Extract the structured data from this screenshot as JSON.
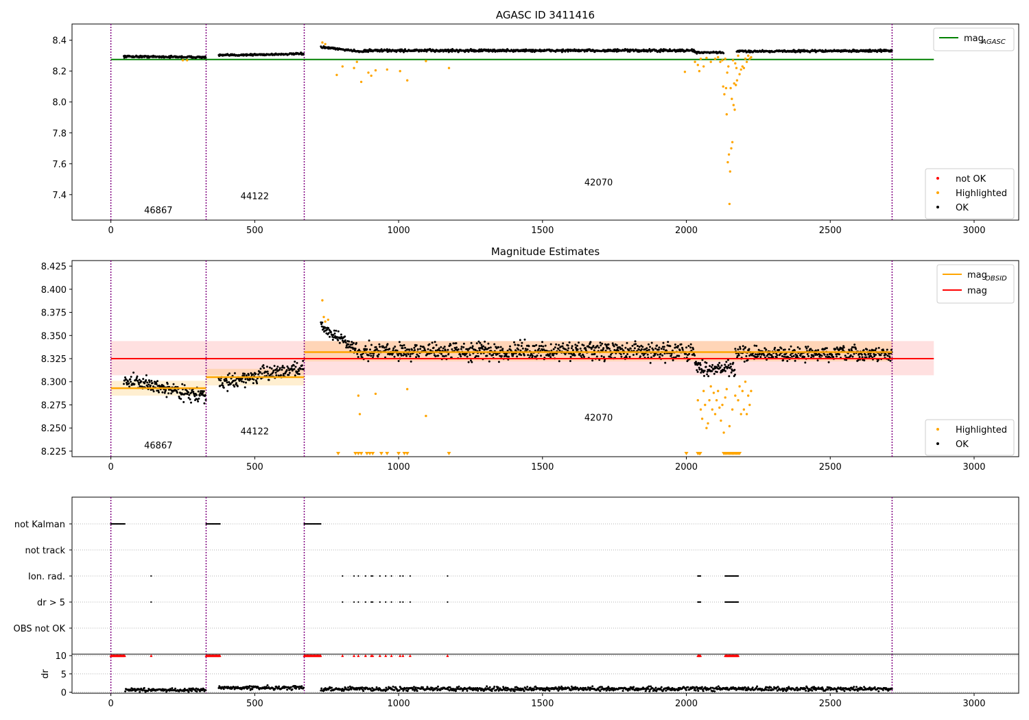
{
  "chart_data": [
    {
      "id": "top",
      "type": "scatter",
      "title": "AGASC ID 3411416",
      "xlim": [
        -135,
        3155
      ],
      "ylim": [
        7.235,
        8.505
      ],
      "xticks": [
        0,
        500,
        1000,
        1500,
        2000,
        2500,
        3000
      ],
      "yticks": [
        7.4,
        7.6,
        7.8,
        8.0,
        8.2,
        8.4
      ],
      "ytick_labels": [
        "7.4",
        "7.6",
        "7.8",
        "8.0",
        "8.2",
        "8.4"
      ],
      "obs_boundaries": [
        0,
        331,
        672,
        2715
      ],
      "obs_labels": [
        {
          "text": "46867",
          "x": 165,
          "y": 7.28
        },
        {
          "text": "44122",
          "x": 500,
          "y": 7.37
        },
        {
          "text": "42070",
          "x": 1695,
          "y": 7.46
        }
      ],
      "hlines": [
        {
          "name": "mag_agasc",
          "y": 8.275,
          "x0": 0,
          "x1": 2860,
          "color": "#008000"
        }
      ],
      "ok_segments": [
        {
          "x0": 45,
          "x1": 330,
          "base": 8.295,
          "slope": -0.005,
          "noise": 0.008
        },
        {
          "x0": 375,
          "x1": 670,
          "base": 8.302,
          "slope": 0.01,
          "noise": 0.008
        },
        {
          "x0": 730,
          "x1": 880,
          "base": 8.355,
          "slope": -0.03,
          "noise": 0.008
        },
        {
          "x0": 880,
          "x1": 2030,
          "base": 8.333,
          "slope": 0.0,
          "noise": 0.011
        },
        {
          "x0": 2030,
          "x1": 2130,
          "base": 8.32,
          "slope": 0.0,
          "noise": 0.007
        },
        {
          "x0": 2175,
          "x1": 2715,
          "base": 8.328,
          "slope": 0.004,
          "noise": 0.009
        }
      ],
      "highlighted_points": [
        [
          250,
          8.27
        ],
        [
          265,
          8.27
        ],
        [
          735,
          8.385
        ],
        [
          745,
          8.375
        ],
        [
          785,
          8.175
        ],
        [
          805,
          8.23
        ],
        [
          845,
          8.22
        ],
        [
          855,
          8.26
        ],
        [
          870,
          8.13
        ],
        [
          895,
          8.19
        ],
        [
          905,
          8.17
        ],
        [
          920,
          8.205
        ],
        [
          960,
          8.21
        ],
        [
          1005,
          8.2
        ],
        [
          1030,
          8.14
        ],
        [
          1095,
          8.265
        ],
        [
          1175,
          8.22
        ],
        [
          1995,
          8.195
        ],
        [
          2030,
          8.26
        ],
        [
          2040,
          8.24
        ],
        [
          2045,
          8.2
        ],
        [
          2050,
          8.28
        ],
        [
          2060,
          8.23
        ],
        [
          2070,
          8.285
        ],
        [
          2085,
          8.26
        ],
        [
          2100,
          8.28
        ],
        [
          2110,
          8.29
        ],
        [
          2118,
          8.26
        ],
        [
          2125,
          8.27
        ],
        [
          2128,
          8.1
        ],
        [
          2132,
          8.05
        ],
        [
          2135,
          8.28
        ],
        [
          2138,
          8.09
        ],
        [
          2140,
          7.92
        ],
        [
          2142,
          8.19
        ],
        [
          2144,
          7.61
        ],
        [
          2146,
          8.23
        ],
        [
          2148,
          7.66
        ],
        [
          2150,
          7.34
        ],
        [
          2152,
          7.55
        ],
        [
          2154,
          8.09
        ],
        [
          2156,
          7.7
        ],
        [
          2158,
          8.02
        ],
        [
          2160,
          7.74
        ],
        [
          2162,
          8.27
        ],
        [
          2164,
          7.98
        ],
        [
          2166,
          8.12
        ],
        [
          2168,
          7.95
        ],
        [
          2170,
          8.25
        ],
        [
          2172,
          8.11
        ],
        [
          2174,
          8.22
        ],
        [
          2176,
          8.14
        ],
        [
          2180,
          8.3
        ],
        [
          2185,
          8.18
        ],
        [
          2190,
          8.21
        ],
        [
          2195,
          8.23
        ],
        [
          2200,
          8.22
        ],
        [
          2205,
          8.28
        ],
        [
          2210,
          8.26
        ],
        [
          2215,
          8.3
        ],
        [
          2220,
          8.28
        ],
        [
          2225,
          8.29
        ]
      ],
      "not_ok_points": [],
      "legend_lines": [
        {
          "label": "mag",
          "sub": "AGASC",
          "color": "#008000"
        }
      ],
      "legend_markers": [
        {
          "label": "not OK",
          "color": "#ff0000"
        },
        {
          "label": "Highlighted",
          "color": "#ffa500"
        },
        {
          "label": "OK",
          "color": "#000000"
        }
      ]
    },
    {
      "id": "mid",
      "type": "scatter",
      "title": "Magnitude Estimates",
      "xlim": [
        -135,
        3155
      ],
      "ylim": [
        8.219,
        8.431
      ],
      "xticks": [
        0,
        500,
        1000,
        1500,
        2000,
        2500,
        3000
      ],
      "yticks": [
        8.225,
        8.25,
        8.275,
        8.3,
        8.325,
        8.35,
        8.375,
        8.4,
        8.425
      ],
      "ytick_labels": [
        "8.225",
        "8.250",
        "8.275",
        "8.300",
        "8.325",
        "8.350",
        "8.375",
        "8.400",
        "8.425"
      ],
      "obs_boundaries": [
        0,
        331,
        672,
        2715
      ],
      "obs_labels": [
        {
          "text": "46867",
          "x": 165,
          "y": 8.228
        },
        {
          "text": "44122",
          "x": 500,
          "y": 8.243
        },
        {
          "text": "42070",
          "x": 1695,
          "y": 8.258
        }
      ],
      "mag_band": {
        "y0": 8.307,
        "y1": 8.344,
        "x0": 0,
        "x1": 2860,
        "color": "#ffcccc"
      },
      "mag_line": {
        "y": 8.325,
        "x0": 0,
        "x1": 2860,
        "color": "#ff0000"
      },
      "obsid_lines": [
        {
          "x0": 0,
          "x1": 331,
          "y": 8.293,
          "lo": 8.285,
          "hi": 8.301
        },
        {
          "x0": 331,
          "x1": 672,
          "y": 8.305,
          "lo": 8.296,
          "hi": 8.314
        },
        {
          "x0": 672,
          "x1": 2715,
          "y": 8.332,
          "lo": 8.322,
          "hi": 8.344
        }
      ],
      "ok_segments": [
        {
          "x0": 45,
          "x1": 330,
          "base": 8.302,
          "slope": -0.018,
          "noise": 0.01
        },
        {
          "x0": 375,
          "x1": 670,
          "base": 8.298,
          "slope": 0.018,
          "noise": 0.01
        },
        {
          "x0": 730,
          "x1": 880,
          "base": 8.36,
          "slope": -0.03,
          "noise": 0.008
        },
        {
          "x0": 880,
          "x1": 2030,
          "base": 8.333,
          "slope": 0.0,
          "noise": 0.012
        },
        {
          "x0": 2030,
          "x1": 2170,
          "base": 8.315,
          "slope": 0.0,
          "noise": 0.01
        },
        {
          "x0": 2170,
          "x1": 2715,
          "base": 8.33,
          "slope": 0.0,
          "noise": 0.01
        }
      ],
      "highlighted_points": [
        [
          735,
          8.388
        ],
        [
          740,
          8.37
        ],
        [
          745,
          8.365
        ],
        [
          755,
          8.367
        ],
        [
          860,
          8.285
        ],
        [
          865,
          8.265
        ],
        [
          920,
          8.287
        ],
        [
          1030,
          8.292
        ],
        [
          1095,
          8.263
        ],
        [
          2040,
          8.28
        ],
        [
          2050,
          8.27
        ],
        [
          2055,
          8.26
        ],
        [
          2060,
          8.29
        ],
        [
          2065,
          8.275
        ],
        [
          2070,
          8.25
        ],
        [
          2075,
          8.255
        ],
        [
          2080,
          8.28
        ],
        [
          2085,
          8.295
        ],
        [
          2090,
          8.27
        ],
        [
          2095,
          8.288
        ],
        [
          2100,
          8.265
        ],
        [
          2105,
          8.28
        ],
        [
          2110,
          8.29
        ],
        [
          2115,
          8.272
        ],
        [
          2120,
          8.258
        ],
        [
          2125,
          8.275
        ],
        [
          2130,
          8.245
        ],
        [
          2135,
          8.283
        ],
        [
          2140,
          8.292
        ],
        [
          2150,
          8.252
        ],
        [
          2160,
          8.27
        ],
        [
          2170,
          8.285
        ],
        [
          2180,
          8.28
        ],
        [
          2185,
          8.295
        ],
        [
          2190,
          8.265
        ],
        [
          2195,
          8.29
        ],
        [
          2200,
          8.27
        ],
        [
          2205,
          8.3
        ],
        [
          2210,
          8.265
        ],
        [
          2215,
          8.285
        ],
        [
          2220,
          8.275
        ],
        [
          2225,
          8.29
        ]
      ],
      "clipped_points": [
        790,
        850,
        860,
        870,
        890,
        900,
        910,
        940,
        960,
        1000,
        1020,
        1030,
        1175,
        2000,
        2040,
        2045,
        2048,
        2130,
        2135,
        2140,
        2145,
        2150,
        2155,
        2160,
        2165,
        2170,
        2175,
        2180,
        2185
      ],
      "legend_lines": [
        {
          "label": "mag",
          "sub": "OBSID",
          "color": "#ffa500"
        },
        {
          "label": "mag",
          "sub": "",
          "color": "#ff0000"
        }
      ],
      "legend_markers": [
        {
          "label": "Highlighted",
          "color": "#ffa500"
        },
        {
          "label": "OK",
          "color": "#000000"
        }
      ]
    },
    {
      "id": "flags",
      "type": "scatter",
      "title": "",
      "xlim": [
        -135,
        3155
      ],
      "rows": [
        "not Kalman",
        "not track",
        "Ion. rad.",
        "dr > 5",
        "OBS not OK"
      ],
      "obs_boundaries": [
        0,
        331,
        672,
        2715
      ],
      "flag_points": {
        "not Kalman": [
          [
            0,
            50
          ],
          [
            331,
            380
          ],
          [
            672,
            730
          ]
        ],
        "not track": [],
        "Ion. rad.": [
          [
            140,
            140
          ],
          [
            805,
            805
          ],
          [
            845,
            845
          ],
          [
            860,
            860
          ],
          [
            885,
            885
          ],
          [
            905,
            905
          ],
          [
            910,
            910
          ],
          [
            935,
            935
          ],
          [
            955,
            955
          ],
          [
            975,
            975
          ],
          [
            1005,
            1005
          ],
          [
            1015,
            1015
          ],
          [
            1040,
            1040
          ],
          [
            1170,
            1170
          ],
          [
            2040,
            2050
          ],
          [
            2135,
            2180
          ]
        ],
        "dr > 5": [
          [
            140,
            140
          ],
          [
            805,
            805
          ],
          [
            845,
            845
          ],
          [
            860,
            860
          ],
          [
            885,
            885
          ],
          [
            905,
            905
          ],
          [
            910,
            910
          ],
          [
            935,
            935
          ],
          [
            955,
            955
          ],
          [
            975,
            975
          ],
          [
            1005,
            1005
          ],
          [
            1015,
            1015
          ],
          [
            1040,
            1040
          ],
          [
            1170,
            1170
          ],
          [
            2040,
            2050
          ],
          [
            2135,
            2180
          ]
        ],
        "OBS not OK": []
      }
    },
    {
      "id": "dr",
      "type": "scatter",
      "ylabel": "dr",
      "xlim": [
        -135,
        3155
      ],
      "ylim": [
        -0.3,
        10.4
      ],
      "xticks": [
        0,
        500,
        1000,
        1500,
        2000,
        2500,
        3000
      ],
      "yticks": [
        0,
        5,
        10
      ],
      "ytick_labels": [
        "0",
        "5",
        "10"
      ],
      "obs_boundaries": [
        0,
        331,
        672,
        2715
      ],
      "dr_segments": [
        {
          "x0": 50,
          "x1": 330,
          "base": 0.6,
          "noise": 0.3
        },
        {
          "x0": 375,
          "x1": 670,
          "base": 1.2,
          "noise": 0.35
        },
        {
          "x0": 730,
          "x1": 2715,
          "base": 0.9,
          "noise": 0.4
        }
      ],
      "clipped_x": [
        [
          0,
          50
        ],
        [
          331,
          380
        ],
        [
          672,
          730
        ],
        [
          140,
          140
        ],
        [
          805,
          805
        ],
        [
          845,
          845
        ],
        [
          860,
          860
        ],
        [
          885,
          885
        ],
        [
          905,
          905
        ],
        [
          910,
          910
        ],
        [
          935,
          935
        ],
        [
          955,
          955
        ],
        [
          975,
          975
        ],
        [
          1005,
          1005
        ],
        [
          1015,
          1015
        ],
        [
          1040,
          1040
        ],
        [
          1170,
          1170
        ],
        [
          2040,
          2050
        ],
        [
          2135,
          2180
        ]
      ]
    }
  ]
}
